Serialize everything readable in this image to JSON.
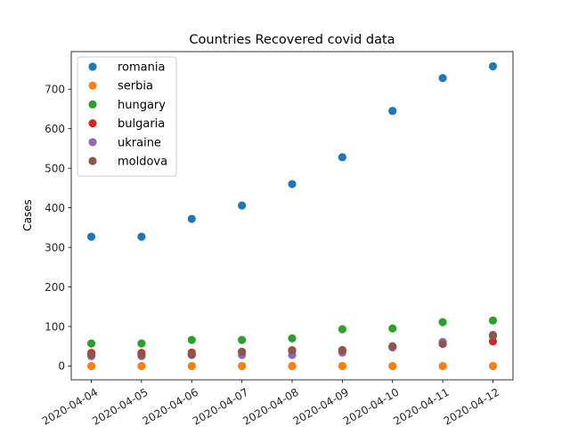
{
  "chart_data": {
    "type": "scatter",
    "title": "Countries Recovered covid data",
    "xlabel": "",
    "ylabel": "Cases",
    "categories": [
      "2020-04-04",
      "2020-04-05",
      "2020-04-06",
      "2020-04-07",
      "2020-04-08",
      "2020-04-09",
      "2020-04-10",
      "2020-04-11",
      "2020-04-12"
    ],
    "ylim": [
      -35,
      795
    ],
    "yticks": [
      0,
      100,
      200,
      300,
      400,
      500,
      600,
      700
    ],
    "grid": false,
    "legend_position": "top-left",
    "series": [
      {
        "name": "romania",
        "color": "#1f77b4",
        "values": [
          327,
          327,
          372,
          406,
          460,
          528,
          645,
          728,
          758
        ]
      },
      {
        "name": "serbia",
        "color": "#ff7f0e",
        "values": [
          0,
          0,
          0,
          0,
          0,
          0,
          0,
          0,
          0
        ]
      },
      {
        "name": "hungary",
        "color": "#2ca02c",
        "values": [
          57,
          57,
          66,
          66,
          70,
          93,
          95,
          111,
          115
        ]
      },
      {
        "name": "bulgaria",
        "color": "#d62728",
        "values": [
          33,
          33,
          34,
          36,
          39,
          40,
          48,
          56,
          62
        ]
      },
      {
        "name": "ukraine",
        "color": "#9467bd",
        "values": [
          25,
          25,
          28,
          28,
          28,
          34,
          47,
          61,
          79
        ]
      },
      {
        "name": "moldova",
        "color": "#8c564b",
        "values": [
          29,
          29,
          29,
          36,
          40,
          40,
          50,
          56,
          76
        ]
      }
    ]
  }
}
